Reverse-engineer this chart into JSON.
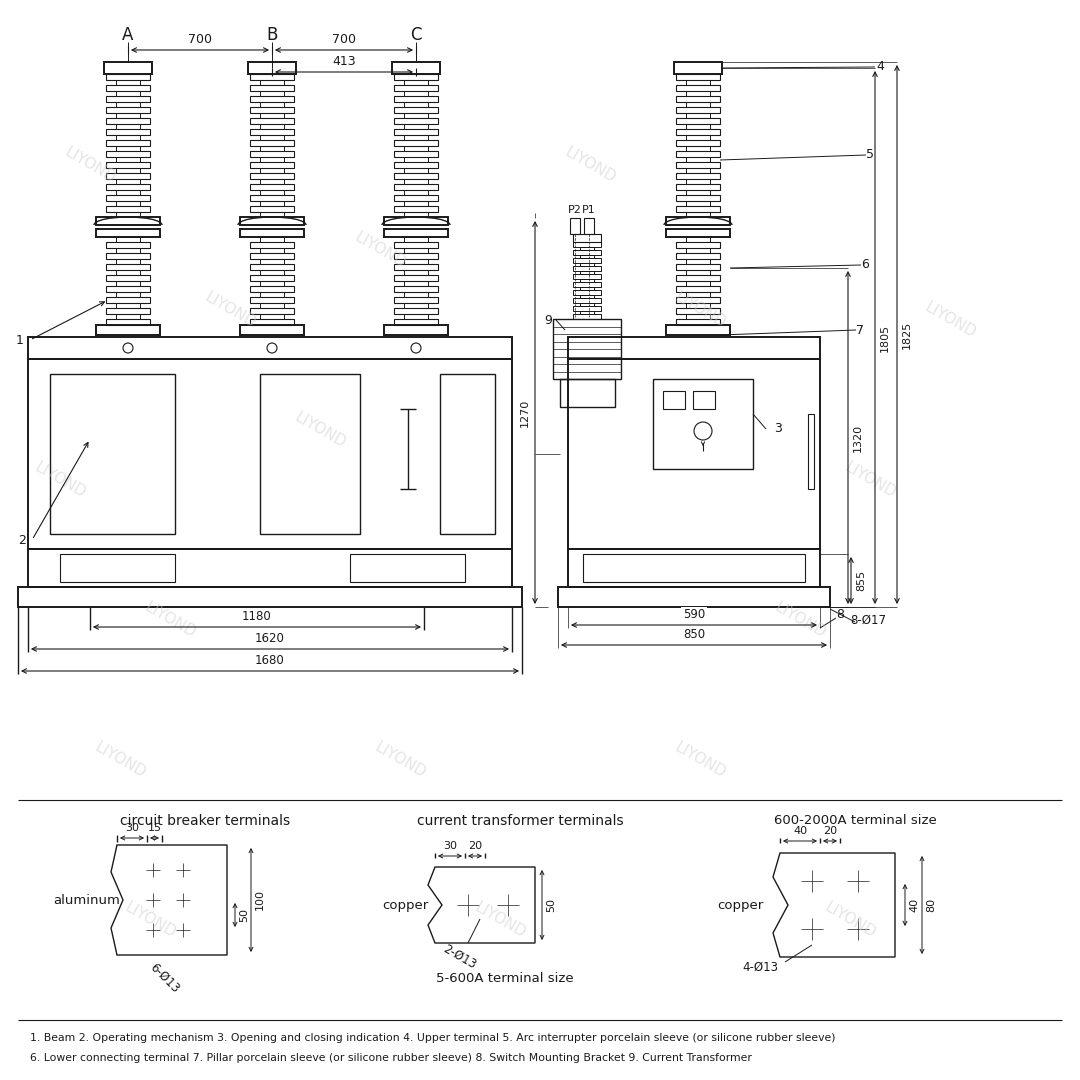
{
  "bg_color": "#ffffff",
  "line_color": "#1a1a1a",
  "watermark_text": "LIYOND",
  "watermark_color": "#cccccc",
  "caption_line1": "1. Beam 2. Operating mechanism 3. Opening and closing indication 4. Upper terminal 5. Arc interrupter porcelain sleeve (or silicone rubber sleeve)",
  "caption_line2": "6. Lower connecting terminal 7. Pillar porcelain sleeve (or silicone rubber sleeve) 8. Switch Mounting Bracket 9. Current Transformer",
  "phase_labels": [
    "A",
    "B",
    "C"
  ],
  "dim_700": "700",
  "dim_413": "413",
  "dim_1270": "1270",
  "dim_1805": "1805",
  "dim_1825": "1825",
  "dim_1320": "1320",
  "dim_855": "855",
  "dim_1180": "1180",
  "dim_1620": "1620",
  "dim_1680": "1680",
  "dim_590": "590",
  "dim_850": "850",
  "note_8phi17": "8-Ø17",
  "cb_title": "circuit breaker terminals",
  "ct_title": "current transformer terminals",
  "lg_title": "600-2000A terminal size",
  "label_aluminum": "aluminum",
  "label_copper1": "copper",
  "label_copper2": "copper",
  "label_5600": "5-600A terminal size",
  "label_6phi13": "6-Ø13",
  "label_2phi13": "2-Ø13",
  "label_4phi13": "4-Ø13"
}
